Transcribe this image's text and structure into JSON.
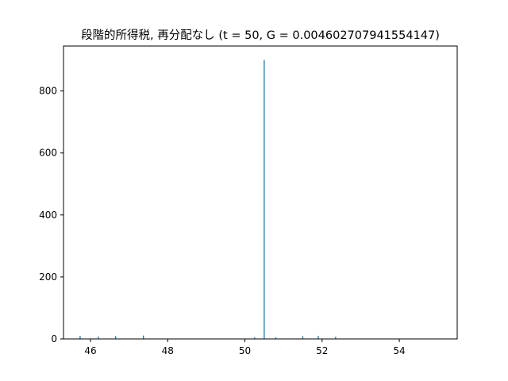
{
  "chart_data": {
    "type": "bar",
    "title": "段階的所得税, 再分配なし (t = 50, G = 0.004602707941554147)",
    "xlabel": "",
    "ylabel": "",
    "xlim": [
      45.3,
      55.5
    ],
    "ylim": [
      0,
      945
    ],
    "xticks": [
      46,
      48,
      50,
      52,
      54
    ],
    "yticks": [
      0,
      200,
      400,
      600,
      800
    ],
    "bar_color": "#1f77b4",
    "grid": false,
    "series": [
      {
        "x": [
          45.73,
          46.2,
          46.65,
          47.37,
          50.25,
          50.5,
          50.8,
          51.5,
          51.9,
          52.35
        ],
        "values": [
          10,
          8,
          9,
          11,
          5,
          900,
          5,
          9,
          10,
          7
        ]
      }
    ]
  }
}
